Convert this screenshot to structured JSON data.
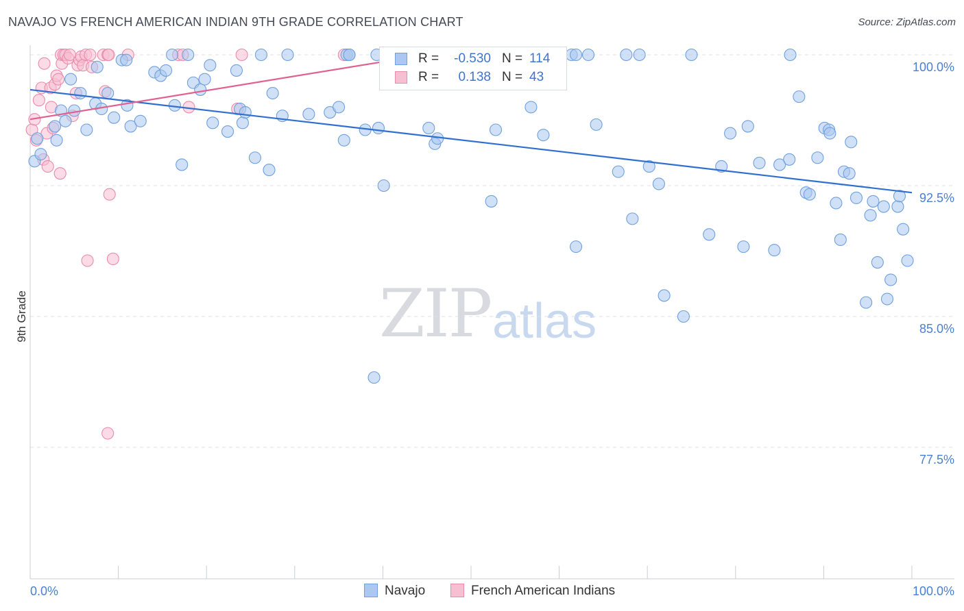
{
  "header": {
    "title": "NAVAJO VS FRENCH AMERICAN INDIAN 9TH GRADE CORRELATION CHART",
    "source": "Source: ZipAtlas.com"
  },
  "legend_stats": {
    "navajo": {
      "r_label": "R =",
      "r_value": "-0.530",
      "n_label": "N =",
      "n_value": "114"
    },
    "french": {
      "r_label": "R =",
      "r_value": "0.138",
      "n_label": "N =",
      "n_value": "43"
    }
  },
  "watermark": {
    "zip": "ZIP",
    "atlas": "atlas"
  },
  "colors": {
    "navajo_fill": "#aac8f0",
    "navajo_stroke": "#6f9fdc",
    "navajo_line": "#2f6fd0",
    "french_fill": "#f7c0d2",
    "french_stroke": "#e98aaa",
    "french_line": "#e0608e",
    "grid": "#dde1e8",
    "axis": "#c9ccd3"
  },
  "chart_data": {
    "type": "scatter",
    "title": "NAVAJO VS FRENCH AMERICAN INDIAN 9TH GRADE CORRELATION CHART",
    "xlabel": "",
    "ylabel": "9th Grade",
    "xlim": [
      0,
      100
    ],
    "ylim": [
      70,
      100.6
    ],
    "x_tick_labels": [
      "0.0%",
      "100.0%"
    ],
    "y_ticks": [
      77.5,
      85.0,
      92.5,
      100.0
    ],
    "y_tick_labels": [
      "77.5%",
      "85.0%",
      "92.5%",
      "100.0%"
    ],
    "grid": true,
    "legend": [
      "Navajo",
      "French American Indians"
    ],
    "series": [
      {
        "name": "Navajo",
        "points": [
          [
            0.5,
            93.9
          ],
          [
            0.8,
            95.2
          ],
          [
            1.2,
            94.3
          ],
          [
            2.8,
            95.9
          ],
          [
            3.0,
            95.1
          ],
          [
            3.5,
            96.8
          ],
          [
            4.0,
            96.2
          ],
          [
            4.6,
            98.6
          ],
          [
            5.0,
            96.8
          ],
          [
            5.7,
            97.8
          ],
          [
            6.4,
            95.7
          ],
          [
            7.4,
            97.2
          ],
          [
            7.6,
            99.3
          ],
          [
            8.1,
            96.9
          ],
          [
            8.8,
            97.8
          ],
          [
            9.5,
            96.4
          ],
          [
            10.4,
            99.7
          ],
          [
            10.9,
            99.7
          ],
          [
            11.0,
            97.1
          ],
          [
            11.4,
            95.9
          ],
          [
            12.5,
            96.2
          ],
          [
            14.1,
            99.0
          ],
          [
            14.8,
            98.8
          ],
          [
            16.1,
            100.0
          ],
          [
            15.4,
            99.1
          ],
          [
            16.4,
            97.1
          ],
          [
            17.2,
            93.7
          ],
          [
            17.9,
            100.0
          ],
          [
            18.5,
            98.4
          ],
          [
            19.3,
            98.0
          ],
          [
            19.8,
            98.6
          ],
          [
            20.4,
            99.4
          ],
          [
            20.7,
            96.1
          ],
          [
            22.4,
            95.6
          ],
          [
            23.4,
            99.1
          ],
          [
            23.8,
            96.9
          ],
          [
            24.1,
            96.1
          ],
          [
            24.4,
            96.7
          ],
          [
            25.5,
            94.1
          ],
          [
            26.2,
            100.0
          ],
          [
            27.1,
            93.4
          ],
          [
            27.5,
            97.8
          ],
          [
            28.6,
            96.5
          ],
          [
            29.2,
            100.0
          ],
          [
            31.6,
            96.6
          ],
          [
            34.0,
            96.7
          ],
          [
            35.0,
            97.0
          ],
          [
            35.6,
            95.1
          ],
          [
            35.9,
            100.0
          ],
          [
            36.2,
            100.0
          ],
          [
            38.0,
            95.7
          ],
          [
            39.0,
            81.5
          ],
          [
            40.1,
            92.5
          ],
          [
            45.2,
            95.8
          ],
          [
            45.9,
            94.9
          ],
          [
            46.2,
            95.2
          ],
          [
            52.3,
            91.6
          ],
          [
            52.8,
            95.7
          ],
          [
            54.5,
            100.0
          ],
          [
            56.8,
            97.0
          ],
          [
            58.2,
            95.4
          ],
          [
            61.4,
            100.0
          ],
          [
            61.9,
            89.0
          ],
          [
            61.9,
            100.0
          ],
          [
            63.3,
            100.0
          ],
          [
            64.2,
            96.0
          ],
          [
            66.7,
            93.3
          ],
          [
            67.6,
            100.0
          ],
          [
            68.3,
            90.6
          ],
          [
            69.1,
            100.0
          ],
          [
            70.2,
            93.6
          ],
          [
            71.3,
            92.6
          ],
          [
            71.9,
            86.2
          ],
          [
            74.1,
            85.0
          ],
          [
            75.0,
            100.0
          ],
          [
            77.0,
            89.7
          ],
          [
            78.4,
            93.6
          ],
          [
            79.4,
            95.5
          ],
          [
            80.9,
            89.0
          ],
          [
            81.4,
            95.9
          ],
          [
            82.7,
            93.8
          ],
          [
            84.4,
            88.8
          ],
          [
            85.0,
            93.7
          ],
          [
            86.1,
            94.0
          ],
          [
            86.2,
            100.0
          ],
          [
            87.2,
            97.6
          ],
          [
            88.0,
            92.1
          ],
          [
            88.4,
            92.0
          ],
          [
            89.3,
            94.1
          ],
          [
            90.1,
            95.8
          ],
          [
            90.6,
            95.7
          ],
          [
            90.7,
            95.5
          ],
          [
            91.4,
            91.5
          ],
          [
            91.9,
            89.4
          ],
          [
            92.3,
            93.3
          ],
          [
            92.9,
            93.2
          ],
          [
            93.1,
            95.0
          ],
          [
            93.7,
            91.8
          ],
          [
            94.8,
            85.8
          ],
          [
            95.3,
            90.8
          ],
          [
            95.6,
            91.6
          ],
          [
            96.1,
            88.1
          ],
          [
            96.8,
            91.3
          ],
          [
            97.2,
            86.0
          ],
          [
            97.6,
            87.1
          ],
          [
            98.4,
            91.3
          ],
          [
            98.6,
            91.9
          ],
          [
            99.0,
            90.0
          ],
          [
            99.5,
            88.2
          ],
          [
            39.5,
            95.8
          ],
          [
            36.2,
            100.0
          ],
          [
            39.3,
            100.0
          ],
          [
            49.2,
            100.0
          ]
        ]
      },
      {
        "name": "French American Indians",
        "points": [
          [
            0.2,
            95.7
          ],
          [
            0.5,
            96.3
          ],
          [
            0.7,
            95.1
          ],
          [
            1.0,
            97.4
          ],
          [
            1.3,
            98.1
          ],
          [
            1.5,
            94.0
          ],
          [
            1.6,
            99.5
          ],
          [
            1.9,
            95.5
          ],
          [
            2.0,
            93.6
          ],
          [
            2.3,
            98.1
          ],
          [
            2.4,
            97.0
          ],
          [
            2.6,
            95.8
          ],
          [
            2.8,
            98.3
          ],
          [
            3.0,
            98.8
          ],
          [
            3.2,
            98.6
          ],
          [
            3.4,
            93.2
          ],
          [
            3.5,
            100.0
          ],
          [
            3.6,
            99.5
          ],
          [
            3.8,
            100.0
          ],
          [
            4.0,
            100.0
          ],
          [
            4.3,
            99.8
          ],
          [
            4.5,
            100.0
          ],
          [
            4.8,
            96.5
          ],
          [
            5.2,
            97.8
          ],
          [
            5.4,
            99.4
          ],
          [
            5.6,
            99.7
          ],
          [
            5.8,
            99.9
          ],
          [
            6.0,
            99.4
          ],
          [
            6.3,
            100.0
          ],
          [
            6.5,
            88.2
          ],
          [
            6.8,
            100.0
          ],
          [
            7.0,
            99.3
          ],
          [
            8.3,
            100.0
          ],
          [
            8.5,
            97.9
          ],
          [
            8.8,
            100.0
          ],
          [
            8.8,
            78.3
          ],
          [
            8.9,
            100.0
          ],
          [
            9.0,
            92.0
          ],
          [
            9.4,
            88.3
          ],
          [
            11.1,
            100.0
          ],
          [
            16.8,
            100.0
          ],
          [
            17.3,
            100.0
          ],
          [
            18.0,
            97.0
          ],
          [
            23.5,
            96.9
          ],
          [
            24.0,
            100.0
          ],
          [
            35.6,
            100.0
          ]
        ]
      }
    ],
    "trend_lines": [
      {
        "name": "Navajo",
        "x": [
          0,
          100
        ],
        "y": [
          98.0,
          92.1
        ]
      },
      {
        "name": "French American Indians",
        "x": [
          0,
          40
        ],
        "y": [
          96.3,
          99.6
        ]
      }
    ]
  }
}
